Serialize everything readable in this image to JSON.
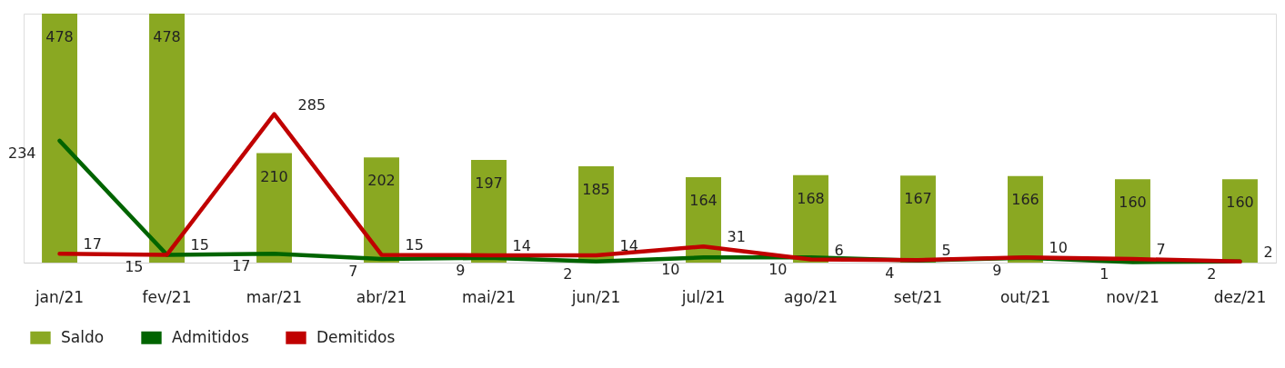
{
  "chart_data": {
    "type": "bar",
    "data_labels": true,
    "legend": "bottom",
    "grid": false,
    "categories": [
      "jan/21",
      "fev/21",
      "mar/21",
      "abr/21",
      "mai/21",
      "jun/21",
      "jul/21",
      "ago/21",
      "set/21",
      "out/21",
      "nov/21",
      "dez/21"
    ],
    "series": [
      {
        "name": "Saldo",
        "color": "#8aa822",
        "values": [
          478,
          478,
          210,
          202,
          197,
          185,
          164,
          168,
          167,
          166,
          160,
          160
        ]
      },
      {
        "name": "Admitidos",
        "type": "line",
        "color": "#006400",
        "values": [
          234,
          15,
          17,
          7,
          9,
          2,
          10,
          10,
          4,
          9,
          1,
          2
        ]
      },
      {
        "name": "Demitidos",
        "type": "line",
        "color": "#c00000",
        "values": [
          17,
          15,
          285,
          15,
          14,
          14,
          31,
          6,
          5,
          10,
          7,
          2
        ]
      }
    ]
  }
}
